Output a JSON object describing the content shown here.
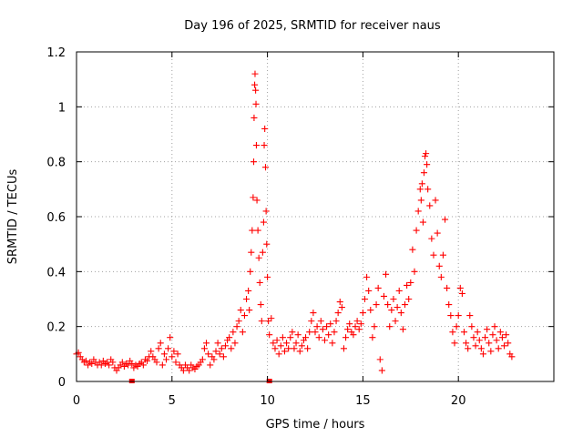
{
  "chart_data": {
    "type": "scatter",
    "title": "Day 196 of 2025, SRMTID for receiver naus",
    "xlabel": "GPS time / hours",
    "ylabel": "SRMTID / TECUs",
    "xlim": [
      0,
      25
    ],
    "ylim": [
      0,
      1.2
    ],
    "xticks": [
      0,
      5,
      10,
      15,
      20
    ],
    "xtick_labels": [
      "0",
      "5",
      "10",
      "15",
      "20"
    ],
    "yticks": [
      0,
      0.2,
      0.4,
      0.6,
      0.8,
      1.0,
      1.2
    ],
    "ytick_labels": [
      "0",
      "0.2",
      "0.4",
      "0.6",
      "0.8",
      "1",
      "1.2"
    ],
    "grid": true,
    "marker": "plus",
    "color": "#ff0000",
    "series": [
      {
        "name": "SRMTID",
        "points": [
          [
            0.0,
            0.1
          ],
          [
            0.1,
            0.105
          ],
          [
            0.2,
            0.09
          ],
          [
            0.3,
            0.08
          ],
          [
            0.4,
            0.07
          ],
          [
            0.5,
            0.075
          ],
          [
            0.6,
            0.06
          ],
          [
            0.7,
            0.07
          ],
          [
            0.8,
            0.065
          ],
          [
            0.9,
            0.08
          ],
          [
            1.0,
            0.07
          ],
          [
            1.1,
            0.06
          ],
          [
            1.2,
            0.07
          ],
          [
            1.3,
            0.06
          ],
          [
            1.4,
            0.075
          ],
          [
            1.5,
            0.065
          ],
          [
            1.6,
            0.07
          ],
          [
            1.7,
            0.06
          ],
          [
            1.8,
            0.08
          ],
          [
            1.9,
            0.07
          ],
          [
            2.0,
            0.05
          ],
          [
            2.1,
            0.04
          ],
          [
            2.2,
            0.05
          ],
          [
            2.3,
            0.06
          ],
          [
            2.4,
            0.07
          ],
          [
            2.5,
            0.055
          ],
          [
            2.6,
            0.065
          ],
          [
            2.7,
            0.06
          ],
          [
            2.8,
            0.075
          ],
          [
            2.9,
            0.065
          ],
          [
            3.0,
            0.05
          ],
          [
            3.1,
            0.06
          ],
          [
            3.2,
            0.055
          ],
          [
            3.3,
            0.065
          ],
          [
            3.4,
            0.07
          ],
          [
            3.5,
            0.06
          ],
          [
            3.6,
            0.08
          ],
          [
            3.7,
            0.075
          ],
          [
            3.8,
            0.09
          ],
          [
            3.9,
            0.11
          ],
          [
            4.0,
            0.09
          ],
          [
            4.1,
            0.08
          ],
          [
            4.2,
            0.07
          ],
          [
            4.3,
            0.12
          ],
          [
            4.4,
            0.14
          ],
          [
            4.5,
            0.06
          ],
          [
            4.6,
            0.1
          ],
          [
            4.7,
            0.08
          ],
          [
            4.8,
            0.12
          ],
          [
            4.9,
            0.16
          ],
          [
            5.0,
            0.09
          ],
          [
            5.1,
            0.11
          ],
          [
            5.2,
            0.07
          ],
          [
            5.3,
            0.1
          ],
          [
            5.4,
            0.06
          ],
          [
            5.5,
            0.05
          ],
          [
            5.6,
            0.04
          ],
          [
            5.7,
            0.06
          ],
          [
            5.8,
            0.05
          ],
          [
            5.9,
            0.04
          ],
          [
            6.0,
            0.06
          ],
          [
            6.1,
            0.05
          ],
          [
            6.2,
            0.045
          ],
          [
            6.3,
            0.055
          ],
          [
            6.4,
            0.06
          ],
          [
            6.5,
            0.07
          ],
          [
            6.6,
            0.08
          ],
          [
            6.7,
            0.12
          ],
          [
            6.8,
            0.14
          ],
          [
            6.9,
            0.1
          ],
          [
            7.0,
            0.06
          ],
          [
            7.1,
            0.09
          ],
          [
            7.2,
            0.08
          ],
          [
            7.3,
            0.11
          ],
          [
            7.4,
            0.14
          ],
          [
            7.5,
            0.1
          ],
          [
            7.6,
            0.12
          ],
          [
            7.7,
            0.09
          ],
          [
            7.8,
            0.13
          ],
          [
            7.9,
            0.15
          ],
          [
            8.0,
            0.16
          ],
          [
            8.1,
            0.12
          ],
          [
            8.2,
            0.18
          ],
          [
            8.3,
            0.14
          ],
          [
            8.4,
            0.2
          ],
          [
            8.5,
            0.22
          ],
          [
            8.6,
            0.26
          ],
          [
            8.7,
            0.18
          ],
          [
            8.8,
            0.24
          ],
          [
            8.9,
            0.3
          ],
          [
            9.0,
            0.33
          ],
          [
            9.05,
            0.26
          ],
          [
            9.1,
            0.4
          ],
          [
            9.15,
            0.47
          ],
          [
            9.2,
            0.55
          ],
          [
            9.25,
            0.67
          ],
          [
            9.28,
            0.8
          ],
          [
            9.3,
            0.96
          ],
          [
            9.33,
            1.08
          ],
          [
            9.35,
            1.12
          ],
          [
            9.38,
            1.06
          ],
          [
            9.4,
            1.01
          ],
          [
            9.42,
            0.86
          ],
          [
            9.45,
            0.66
          ],
          [
            9.5,
            0.55
          ],
          [
            9.55,
            0.45
          ],
          [
            9.6,
            0.36
          ],
          [
            9.65,
            0.28
          ],
          [
            9.7,
            0.22
          ],
          [
            9.75,
            0.47
          ],
          [
            9.8,
            0.58
          ],
          [
            9.83,
            0.86
          ],
          [
            9.86,
            0.92
          ],
          [
            9.9,
            0.78
          ],
          [
            9.93,
            0.62
          ],
          [
            9.96,
            0.5
          ],
          [
            10.0,
            0.38
          ],
          [
            10.05,
            0.22
          ],
          [
            10.1,
            0.17
          ],
          [
            10.2,
            0.23
          ],
          [
            10.3,
            0.14
          ],
          [
            10.4,
            0.12
          ],
          [
            10.5,
            0.15
          ],
          [
            10.6,
            0.1
          ],
          [
            10.7,
            0.13
          ],
          [
            10.8,
            0.16
          ],
          [
            10.9,
            0.11
          ],
          [
            11.0,
            0.14
          ],
          [
            11.1,
            0.12
          ],
          [
            11.2,
            0.16
          ],
          [
            11.3,
            0.18
          ],
          [
            11.4,
            0.12
          ],
          [
            11.5,
            0.14
          ],
          [
            11.6,
            0.17
          ],
          [
            11.7,
            0.11
          ],
          [
            11.8,
            0.13
          ],
          [
            11.9,
            0.15
          ],
          [
            12.0,
            0.16
          ],
          [
            12.1,
            0.12
          ],
          [
            12.2,
            0.18
          ],
          [
            12.3,
            0.22
          ],
          [
            12.4,
            0.25
          ],
          [
            12.5,
            0.18
          ],
          [
            12.6,
            0.2
          ],
          [
            12.7,
            0.16
          ],
          [
            12.8,
            0.22
          ],
          [
            12.9,
            0.19
          ],
          [
            13.0,
            0.15
          ],
          [
            13.1,
            0.2
          ],
          [
            13.2,
            0.17
          ],
          [
            13.3,
            0.21
          ],
          [
            13.4,
            0.14
          ],
          [
            13.5,
            0.18
          ],
          [
            13.6,
            0.22
          ],
          [
            13.7,
            0.25
          ],
          [
            13.8,
            0.29
          ],
          [
            13.9,
            0.27
          ],
          [
            14.0,
            0.12
          ],
          [
            14.1,
            0.16
          ],
          [
            14.2,
            0.19
          ],
          [
            14.3,
            0.21
          ],
          [
            14.4,
            0.18
          ],
          [
            14.5,
            0.17
          ],
          [
            14.6,
            0.2
          ],
          [
            14.7,
            0.22
          ],
          [
            14.8,
            0.19
          ],
          [
            14.9,
            0.21
          ],
          [
            15.0,
            0.25
          ],
          [
            15.1,
            0.3
          ],
          [
            15.2,
            0.38
          ],
          [
            15.3,
            0.33
          ],
          [
            15.4,
            0.26
          ],
          [
            15.5,
            0.16
          ],
          [
            15.6,
            0.2
          ],
          [
            15.7,
            0.28
          ],
          [
            15.8,
            0.34
          ],
          [
            15.9,
            0.08
          ],
          [
            16.0,
            0.04
          ],
          [
            16.1,
            0.31
          ],
          [
            16.2,
            0.39
          ],
          [
            16.3,
            0.28
          ],
          [
            16.4,
            0.2
          ],
          [
            16.5,
            0.26
          ],
          [
            16.6,
            0.3
          ],
          [
            16.7,
            0.22
          ],
          [
            16.8,
            0.27
          ],
          [
            16.9,
            0.33
          ],
          [
            17.0,
            0.25
          ],
          [
            17.1,
            0.19
          ],
          [
            17.2,
            0.28
          ],
          [
            17.3,
            0.35
          ],
          [
            17.4,
            0.3
          ],
          [
            17.5,
            0.36
          ],
          [
            17.6,
            0.48
          ],
          [
            17.7,
            0.4
          ],
          [
            17.8,
            0.55
          ],
          [
            17.9,
            0.62
          ],
          [
            18.0,
            0.7
          ],
          [
            18.05,
            0.66
          ],
          [
            18.1,
            0.72
          ],
          [
            18.15,
            0.58
          ],
          [
            18.2,
            0.76
          ],
          [
            18.25,
            0.82
          ],
          [
            18.3,
            0.83
          ],
          [
            18.35,
            0.79
          ],
          [
            18.4,
            0.7
          ],
          [
            18.5,
            0.64
          ],
          [
            18.6,
            0.52
          ],
          [
            18.7,
            0.46
          ],
          [
            18.8,
            0.66
          ],
          [
            18.9,
            0.54
          ],
          [
            19.0,
            0.42
          ],
          [
            19.1,
            0.38
          ],
          [
            19.2,
            0.46
          ],
          [
            19.3,
            0.59
          ],
          [
            19.4,
            0.34
          ],
          [
            19.5,
            0.28
          ],
          [
            19.6,
            0.24
          ],
          [
            19.7,
            0.18
          ],
          [
            19.8,
            0.14
          ],
          [
            19.9,
            0.2
          ],
          [
            20.0,
            0.24
          ],
          [
            20.1,
            0.34
          ],
          [
            20.2,
            0.32
          ],
          [
            20.3,
            0.18
          ],
          [
            20.4,
            0.14
          ],
          [
            20.5,
            0.12
          ],
          [
            20.6,
            0.24
          ],
          [
            20.7,
            0.2
          ],
          [
            20.8,
            0.16
          ],
          [
            20.9,
            0.13
          ],
          [
            21.0,
            0.18
          ],
          [
            21.1,
            0.15
          ],
          [
            21.2,
            0.12
          ],
          [
            21.3,
            0.1
          ],
          [
            21.4,
            0.16
          ],
          [
            21.5,
            0.19
          ],
          [
            21.6,
            0.14
          ],
          [
            21.7,
            0.11
          ],
          [
            21.8,
            0.17
          ],
          [
            21.9,
            0.2
          ],
          [
            22.0,
            0.15
          ],
          [
            22.1,
            0.12
          ],
          [
            22.2,
            0.18
          ],
          [
            22.3,
            0.16
          ],
          [
            22.4,
            0.13
          ],
          [
            22.5,
            0.17
          ],
          [
            22.6,
            0.14
          ],
          [
            22.7,
            0.1
          ],
          [
            22.8,
            0.09
          ]
        ]
      }
    ],
    "outliers_at_zero": [
      [
        2.9,
        0.0
      ],
      [
        10.1,
        0.0
      ]
    ]
  }
}
